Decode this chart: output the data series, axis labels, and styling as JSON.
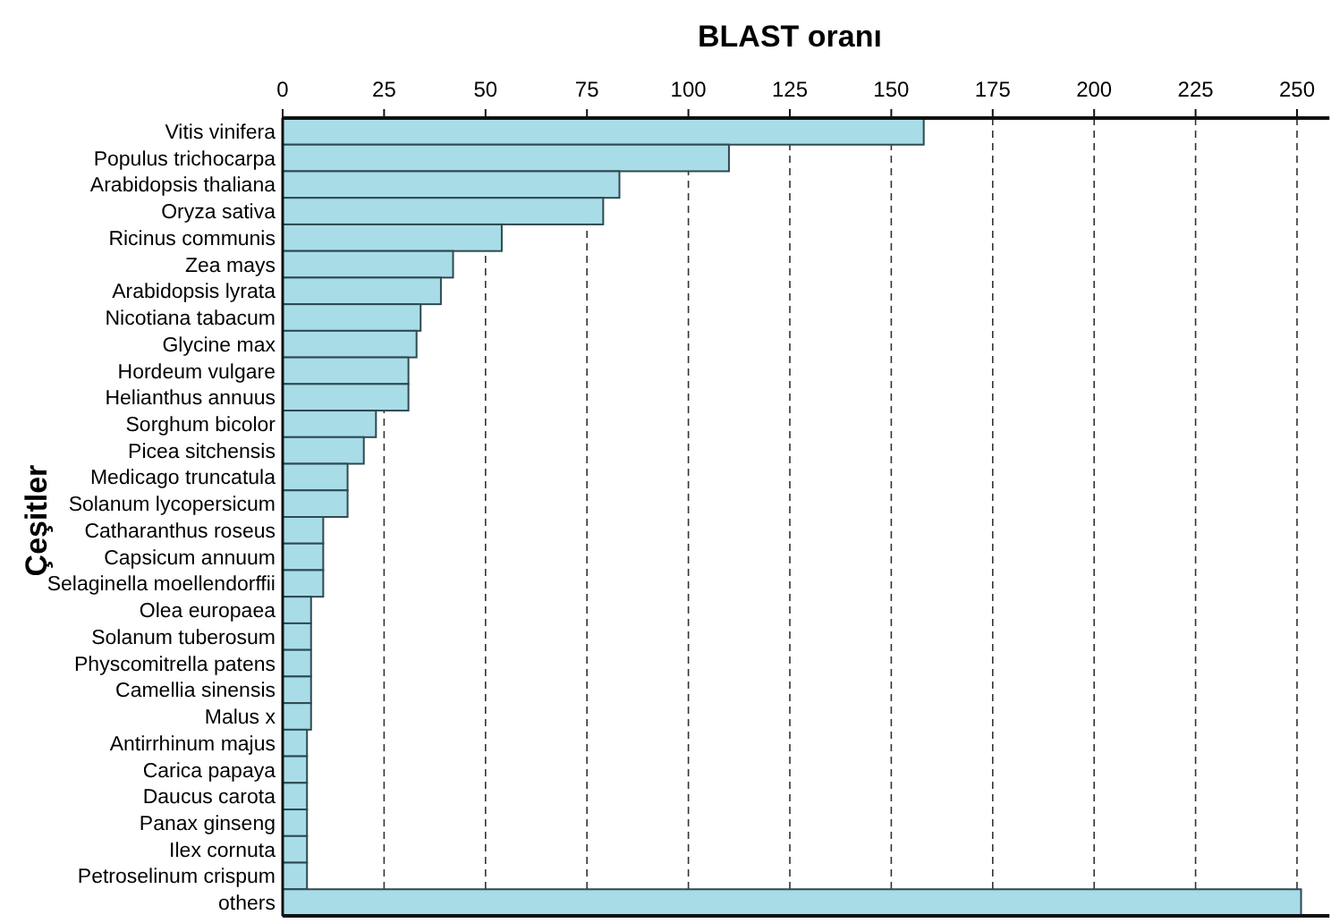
{
  "chart_data": {
    "type": "bar",
    "orientation": "horizontal",
    "title": "BLAST oranı",
    "ylabel": "Çeşitler",
    "categories": [
      "Vitis vinifera",
      "Populus trichocarpa",
      "Arabidopsis thaliana",
      "Oryza sativa",
      "Ricinus communis",
      "Zea mays",
      "Arabidopsis lyrata",
      "Nicotiana tabacum",
      "Glycine max",
      "Hordeum vulgare",
      "Helianthus annuus",
      "Sorghum bicolor",
      "Picea sitchensis",
      "Medicago truncatula",
      "Solanum lycopersicum",
      "Catharanthus roseus",
      "Capsicum annuum",
      "Selaginella moellendorffii",
      "Olea europaea",
      "Solanum tuberosum",
      "Physcomitrella patens",
      "Camellia sinensis",
      "Malus x",
      "Antirrhinum majus",
      "Carica papaya",
      "Daucus carota",
      "Panax ginseng",
      "Ilex cornuta",
      "Petroselinum crispum",
      "others"
    ],
    "values": [
      158,
      110,
      83,
      79,
      54,
      42,
      39,
      34,
      33,
      31,
      31,
      23,
      20,
      16,
      16,
      10,
      10,
      10,
      7,
      7,
      7,
      7,
      7,
      6,
      6,
      6,
      6,
      6,
      6,
      251
    ],
    "color": "#a8dde8",
    "xlim": [
      0,
      258
    ],
    "xticks": [
      0,
      25,
      50,
      75,
      100,
      125,
      150,
      175,
      200,
      225,
      250
    ],
    "grid": "x"
  }
}
